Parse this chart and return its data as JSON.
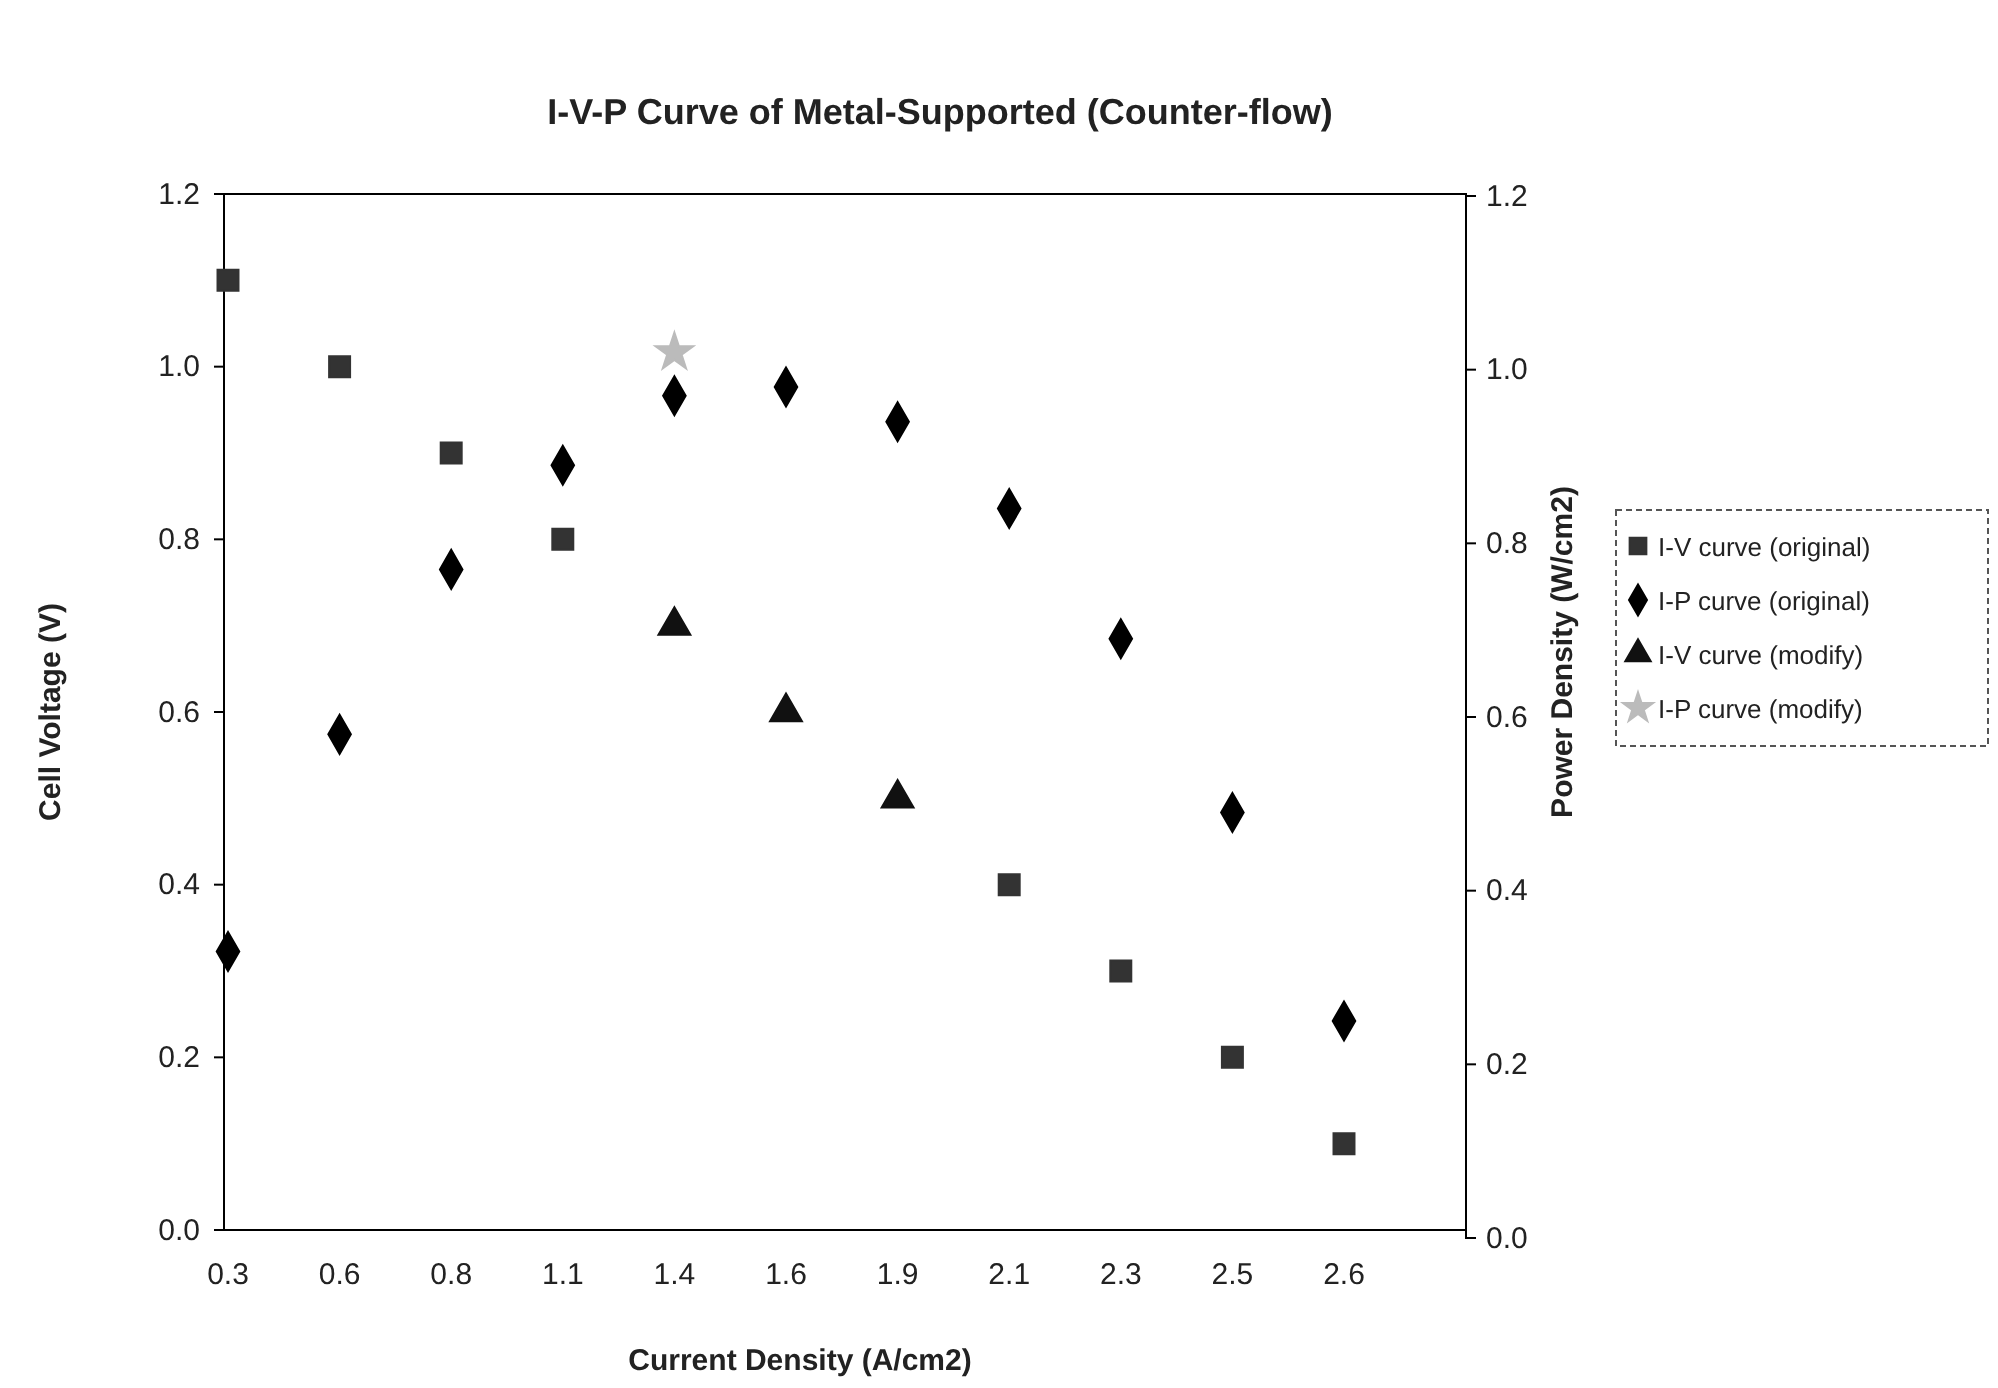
{
  "chart_data": {
    "type": "scatter",
    "title": "I-V-P Curve of Metal-Supported (Counter-flow)",
    "xlabel": "Current Density (A/cm2)",
    "ylabel": "Cell Voltage (V)",
    "y2label": "Power Density (W/cm2)",
    "categories": [
      "0.3",
      "0.6",
      "0.8",
      "1.1",
      "1.4",
      "1.6",
      "1.9",
      "2.1",
      "2.3",
      "2.5",
      "2.6"
    ],
    "series": [
      {
        "name": "I-V curve (original)",
        "color": "#333333",
        "marker": "square",
        "values": [
          1.1,
          1.0,
          0.9,
          0.8,
          null,
          null,
          null,
          0.4,
          0.3,
          0.2,
          0.1
        ]
      },
      {
        "name": "I-P curve (original)",
        "color": "#000000",
        "marker": "diamond",
        "axis": "y2",
        "values": [
          0.33,
          0.58,
          0.77,
          0.89,
          0.97,
          0.98,
          0.94,
          0.84,
          0.69,
          0.49,
          0.25
        ]
      },
      {
        "name": "I-V curve (modify)",
        "color": "#111111",
        "marker": "triangle",
        "values": [
          null,
          null,
          null,
          null,
          0.7,
          0.6,
          0.5,
          null,
          null,
          null,
          null
        ]
      },
      {
        "name": "I-P curve (modify)",
        "color": "#bbbbbb",
        "marker": "star",
        "axis": "y2",
        "values": [
          null,
          null,
          null,
          null,
          1.02,
          null,
          null,
          null,
          null,
          null,
          null
        ]
      }
    ],
    "ylim": [
      0,
      1.2
    ],
    "yticks": [
      {
        "value": 0,
        "label": "0.0"
      },
      {
        "value": 0.2,
        "label": "0.2"
      },
      {
        "value": 0.4,
        "label": "0.4"
      },
      {
        "value": 0.6,
        "label": "0.6"
      },
      {
        "value": 0.8,
        "label": "0.8"
      },
      {
        "value": 1,
        "label": "1.0"
      },
      {
        "value": 1.2,
        "label": "1.2"
      }
    ],
    "y2lim": [
      0,
      1.2
    ],
    "y2ticks": [
      {
        "value": 0,
        "label": "0.0"
      },
      {
        "value": 0.2,
        "label": "0.2"
      },
      {
        "value": 0.4,
        "label": "0.4"
      },
      {
        "value": 0.6,
        "label": "0.6"
      },
      {
        "value": 0.8,
        "label": "0.8"
      },
      {
        "value": 1,
        "label": "1.0"
      },
      {
        "value": 1.2,
        "label": "1.2"
      }
    ],
    "legend": "right",
    "grid": false
  }
}
